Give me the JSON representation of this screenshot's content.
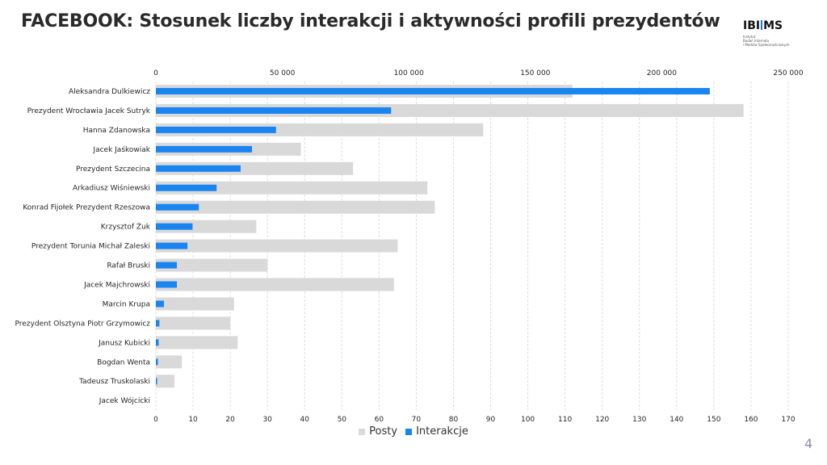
{
  "page": {
    "title": "FACEBOOK: Stosunek liczby interakcji i aktywności profili prezydentów",
    "page_number": "4",
    "logo": {
      "text_before": "IBI",
      "text_after": "MS",
      "subtitle_lines": [
        "Instytut",
        "Badań Internetu",
        "i Mediów Społecznościowych"
      ]
    }
  },
  "colors": {
    "posts": "#d9d9d9",
    "interactions": "#1a84f0",
    "grid": "#dcdcdc",
    "text": "#262626"
  },
  "chart_data": {
    "type": "bar",
    "orientation": "horizontal",
    "title": "",
    "categories": [
      "Aleksandra Dulkiewicz",
      "Prezydent Wrocławia Jacek Sutryk",
      "Hanna Zdanowska",
      "Jacek Jaśkowiak",
      "Prezydent Szczecina",
      "Arkadiusz Wiśniewski",
      "Konrad Fijołek Prezydent Rzeszowa",
      "Krzysztof Żuk",
      "Prezydent Torunia Michał Zaleski",
      "Rafał Bruski",
      "Jacek Majchrowski",
      "Marcin Krupa",
      "Prezydent Olsztyna Piotr Grzymowicz",
      "Janusz Kubicki",
      "Bogdan Wenta",
      "Tadeusz Truskolaski",
      "Jacek Wójcicki"
    ],
    "series": [
      {
        "name": "Posty",
        "axis": "bottom",
        "values": [
          112,
          158,
          88,
          39,
          53,
          73,
          75,
          27,
          65,
          30,
          64,
          21,
          20,
          22,
          7,
          5,
          0
        ]
      },
      {
        "name": "Interakcje",
        "axis": "top",
        "values": [
          219000,
          93000,
          47500,
          38000,
          33500,
          24000,
          17000,
          14500,
          12500,
          8300,
          8300,
          3200,
          1400,
          1100,
          800,
          500,
          0
        ]
      }
    ],
    "bottom_axis": {
      "min": 0,
      "max": 170,
      "ticks": [
        "0",
        "10",
        "20",
        "30",
        "40",
        "50",
        "60",
        "70",
        "80",
        "90",
        "100",
        "110",
        "120",
        "130",
        "140",
        "150",
        "160",
        "170"
      ]
    },
    "top_axis": {
      "min": 0,
      "max": 250000,
      "ticks": [
        "0",
        "50 000",
        "100 000",
        "150 000",
        "200 000",
        "250 000"
      ]
    },
    "grid": true,
    "legend": {
      "position": "bottom",
      "entries": [
        "Posty",
        "Interakcje"
      ]
    }
  }
}
